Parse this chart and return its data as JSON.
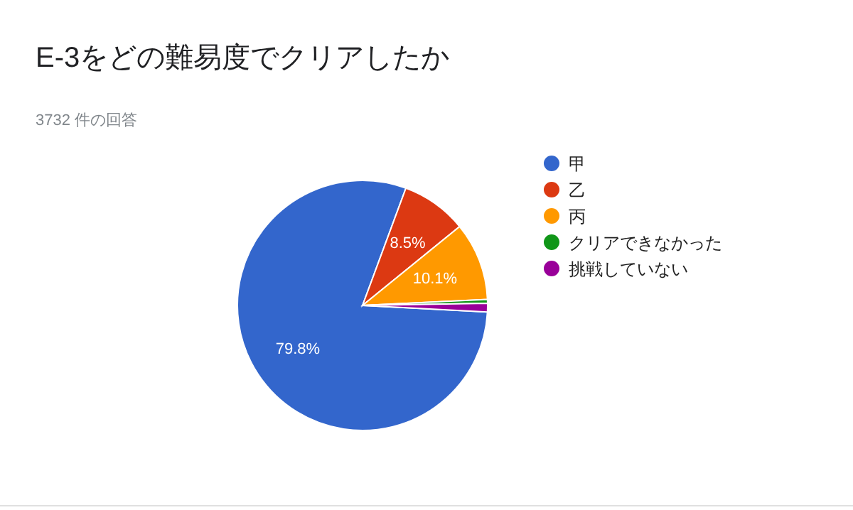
{
  "chart_data": {
    "type": "pie",
    "title": "E-3をどの難易度でクリアしたか",
    "subtitle": "3732 件の回答",
    "categories": [
      "甲",
      "乙",
      "丙",
      "クリアできなかった",
      "挑戦していない"
    ],
    "values": [
      79.8,
      8.5,
      10.1,
      0.5,
      1.1
    ],
    "colors": [
      "#3366cc",
      "#dc3912",
      "#ff9900",
      "#109618",
      "#990099"
    ],
    "value_labels": [
      "79.8%",
      "8.5%",
      "10.1%",
      null,
      null
    ],
    "legend": "right"
  }
}
